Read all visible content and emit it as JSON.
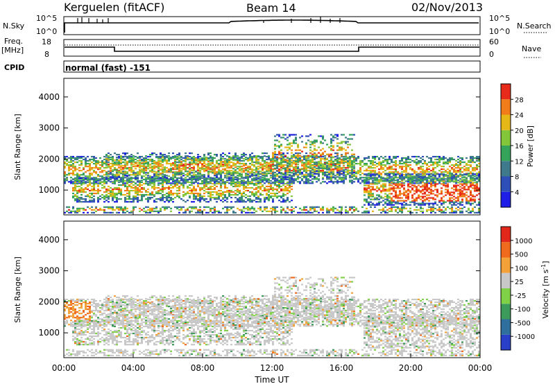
{
  "header": {
    "site": "Kerguelen (fitACF)",
    "beam": "Beam 14",
    "date": "02/Nov/2013"
  },
  "panels": {
    "nsky": {
      "left_label": "N.Sky",
      "right_label": "N.Search",
      "tick_top": "10^5",
      "tick_bottom": "10^0"
    },
    "freq": {
      "left_label_1": "Freq.",
      "left_label_2": "[MHz]",
      "tick_top": "18",
      "tick_bottom": "8",
      "right_label": "Nave",
      "right_tick_top": "60",
      "right_tick_bottom": "0"
    },
    "cpid": {
      "label": "CPID",
      "mode": "normal (fast) -151"
    }
  },
  "chart_data": [
    {
      "type": "heatmap",
      "quantity": "power",
      "ylabel": "Slant Range [km]",
      "yticks": [
        "1000",
        "2000",
        "3000",
        "4000"
      ],
      "ylim": [
        200,
        4600
      ],
      "colorbar": {
        "label": "Power [dB]",
        "ticks": [
          "4",
          "8",
          "12",
          "16",
          "20",
          "24",
          "28"
        ],
        "colors": [
          "#1e1ee6",
          "#2e4fb8",
          "#3f7a8c",
          "#35a35a",
          "#84c63a",
          "#e6b817",
          "#f07d1a",
          "#e82a1a"
        ]
      }
    },
    {
      "type": "heatmap",
      "quantity": "velocity",
      "ylabel": "Slant Range [km]",
      "yticks": [
        "1000",
        "2000",
        "3000",
        "4000"
      ],
      "ylim": [
        200,
        4600
      ],
      "xlabel": "Time UT",
      "xticks": [
        "00:00",
        "04:00",
        "08:00",
        "12:00",
        "16:00",
        "20:00",
        "00:00"
      ],
      "colorbar": {
        "label": "Velocity [m s-1]",
        "ticks": [
          "1000",
          "500",
          "100",
          "25",
          "-25",
          "-100",
          "-500",
          "-1000"
        ],
        "colors": [
          "#2a3fc8",
          "#2e6f9e",
          "#3c9a5a",
          "#7fd148",
          "#c8c8c8",
          "#f3a23a",
          "#f06a1e",
          "#e2281a"
        ]
      }
    }
  ]
}
